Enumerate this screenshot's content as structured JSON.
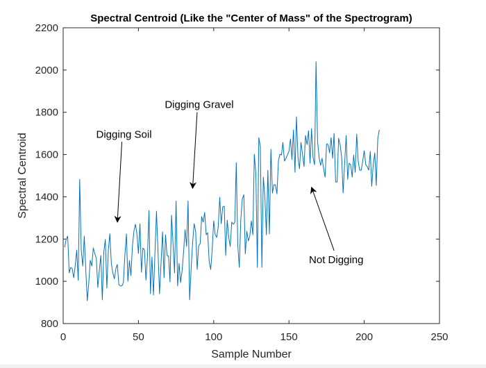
{
  "chart_data": {
    "type": "line",
    "title": "Spectral Centroid (Like the \"Center of Mass\" of the Spectrogram)",
    "xlabel": "Sample Number",
    "ylabel": "Spectral Centroid",
    "xlim": [
      0,
      250
    ],
    "ylim": [
      800,
      2200
    ],
    "xticks": [
      0,
      50,
      100,
      150,
      200,
      250
    ],
    "yticks": [
      800,
      1000,
      1200,
      1400,
      1600,
      1800,
      2000,
      2200
    ],
    "xtick_labels": [
      "0",
      "50",
      "100",
      "150",
      "200",
      "250"
    ],
    "ytick_labels": [
      "800",
      "1000",
      "1200",
      "1400",
      "1600",
      "1800",
      "2000",
      "2200"
    ],
    "grid": false,
    "series": [
      {
        "name": "Spectral Centroid",
        "color": "#0072bd",
        "x_start": 1,
        "values": [
          1161,
          1198,
          1214,
          1040,
          1066,
          1060,
          1017,
          1072,
          1148,
          1004,
          1483,
          1148,
          1072,
          1214,
          1060,
          908,
          994,
          1099,
          1072,
          1158,
          1132,
          1109,
          971,
          1050,
          1122,
          912,
          1138,
          1198,
          968,
          1145,
          1225,
          1083,
          1040,
          1012,
          1060,
          1080,
          984,
          978,
          978,
          994,
          1125,
          1224,
          1000,
          1098,
          1027,
          1165,
          1237,
          1270,
          1224,
          1132,
          1273,
          1043,
          1158,
          1148,
          1006,
          1115,
          1335,
          941,
          1115,
          935,
          1138,
          1332,
          1138,
          941,
          1083,
          1234,
          1017,
          1220,
          1122,
          1119,
          997,
          1313,
          1175,
          1040,
          1380,
          978,
          1085,
          994,
          1050,
          1138,
          1244,
          1165,
          1380,
          912,
          1060,
          1181,
          1273,
          1237,
          1056,
          1168,
          1178,
          1306,
          1280,
          1326,
          1220,
          1230,
          1093,
          1056,
          1148,
          1286,
          1220,
          1208,
          1257,
          1398,
          1273,
          1352,
          1355,
          1122,
          1290,
          1208,
          1165,
          1280,
          1270,
          1280,
          1562,
          1170,
          1066,
          1290,
          1390,
          1410,
          1130,
          1237,
          1191,
          1214,
          1286,
          1220,
          1602,
          1510,
          1066,
          1680,
          1637,
          1066,
          1493,
          1401,
          1220,
          1526,
          1224,
          1625,
          1418,
          1457,
          1457,
          1414,
          1569,
          1602,
          1598,
          1657,
          1569,
          1582,
          1598,
          1615,
          1674,
          1576,
          1717,
          1516,
          1779,
          1586,
          1533,
          1657,
          1602,
          1543,
          1690,
          1647,
          1713,
          1559,
          1723,
          1586,
          1552,
          2040,
          1664,
          1586,
          1549,
          1582,
          1533,
          1493,
          1651,
          1647,
          1608,
          1680,
          1582,
          1700,
          1470,
          1470,
          1677,
          1647,
          1586,
          1418,
          1559,
          1690,
          1483,
          1559,
          1552,
          1493,
          1598,
          1516,
          1697,
          1569,
          1526,
          1526,
          1569,
          1618,
          1552,
          1543,
          1526,
          1615,
          1450,
          1552,
          1608,
          1454,
          1674,
          1717
        ]
      }
    ],
    "annotations": [
      {
        "text": "Digging Soil",
        "arrow_to": [
          36,
          1280
        ],
        "arrow_from": [
          39,
          1660
        ]
      },
      {
        "text": "Digging Gravel",
        "arrow_to": [
          86,
          1440
        ],
        "arrow_from": [
          89,
          1800
        ]
      },
      {
        "text": "Not Digging",
        "arrow_to": [
          165,
          1445
        ],
        "arrow_from": [
          180,
          1145
        ]
      }
    ]
  }
}
